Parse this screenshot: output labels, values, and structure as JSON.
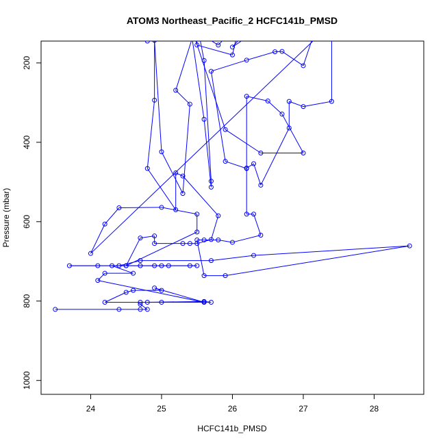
{
  "chart_data": {
    "type": "line",
    "title": "ATOM3 Northeast_Pacific_2 HCFC141b_PMSD",
    "xlabel": "HCFC141b_PMSD",
    "ylabel": "Pressure (mbar)",
    "xlim": [
      23.3,
      28.7
    ],
    "ylim": [
      1035,
      145
    ],
    "y_reversed": true,
    "x_ticks": [
      24,
      25,
      26,
      27,
      28
    ],
    "y_ticks": [
      200,
      400,
      600,
      800,
      1000
    ],
    "series_color": "#0000ff",
    "marker": "open-circle",
    "grid": false,
    "legend": "none",
    "points": [
      [
        23.5,
        821
      ],
      [
        24.4,
        821
      ],
      [
        24.7,
        821
      ],
      [
        24.8,
        821
      ],
      [
        24.7,
        808
      ],
      [
        24.7,
        803
      ],
      [
        25.0,
        803
      ],
      [
        25.6,
        803
      ],
      [
        25.7,
        803
      ],
      [
        25.6,
        801
      ],
      [
        24.8,
        803
      ],
      [
        24.2,
        803
      ],
      [
        24.5,
        778
      ],
      [
        24.6,
        773
      ],
      [
        25.0,
        773
      ],
      [
        24.9,
        767
      ],
      [
        25.6,
        803
      ],
      [
        24.1,
        748
      ],
      [
        24.2,
        730
      ],
      [
        24.6,
        730
      ],
      [
        24.3,
        711
      ],
      [
        24.5,
        711
      ],
      [
        24.7,
        711
      ],
      [
        24.9,
        711
      ],
      [
        25.0,
        711
      ],
      [
        25.1,
        711
      ],
      [
        25.4,
        711
      ],
      [
        25.5,
        711
      ],
      [
        23.7,
        711
      ],
      [
        24.1,
        711
      ],
      [
        24.4,
        711
      ],
      [
        24.7,
        698
      ],
      [
        25.7,
        698
      ],
      [
        26.3,
        685
      ],
      [
        28.5,
        661
      ],
      [
        25.9,
        736
      ],
      [
        25.6,
        736
      ],
      [
        25.5,
        646
      ],
      [
        25.6,
        646
      ],
      [
        25.8,
        646
      ],
      [
        26.0,
        652
      ],
      [
        26.4,
        634
      ],
      [
        26.3,
        581
      ],
      [
        26.2,
        581
      ],
      [
        26.2,
        465
      ],
      [
        26.3,
        454
      ],
      [
        26.4,
        508
      ],
      [
        26.8,
        364
      ],
      [
        26.8,
        297
      ],
      [
        27.0,
        310
      ],
      [
        27.4,
        297
      ],
      [
        27.4,
        100
      ],
      [
        24.0,
        680
      ],
      [
        24.2,
        606
      ],
      [
        24.4,
        565
      ],
      [
        25.0,
        564
      ],
      [
        25.5,
        581
      ],
      [
        25.5,
        626
      ],
      [
        24.5,
        711
      ],
      [
        24.7,
        641
      ],
      [
        24.9,
        636
      ],
      [
        24.9,
        655
      ],
      [
        25.3,
        655
      ],
      [
        25.4,
        655
      ],
      [
        25.5,
        655
      ],
      [
        25.7,
        645
      ],
      [
        25.8,
        585
      ],
      [
        25.3,
        485
      ],
      [
        25.2,
        477
      ],
      [
        25.2,
        570
      ],
      [
        24.8,
        466
      ],
      [
        24.9,
        294
      ],
      [
        24.9,
        143
      ],
      [
        25.0,
        424
      ],
      [
        25.3,
        529
      ],
      [
        25.4,
        304
      ],
      [
        25.2,
        269
      ],
      [
        25.5,
        100
      ],
      [
        25.6,
        194
      ],
      [
        25.7,
        498
      ],
      [
        25.7,
        513
      ],
      [
        25.6,
        342
      ],
      [
        25.4,
        100
      ],
      [
        25.9,
        368
      ],
      [
        26.4,
        427
      ],
      [
        27.0,
        427
      ],
      [
        26.7,
        329
      ],
      [
        26.5,
        296
      ],
      [
        26.2,
        284
      ],
      [
        26.2,
        466
      ],
      [
        25.9,
        448
      ],
      [
        25.7,
        221
      ],
      [
        26.2,
        193
      ],
      [
        26.6,
        172
      ],
      [
        26.7,
        171
      ],
      [
        27.0,
        207
      ],
      [
        27.2,
        100
      ],
      [
        26.1,
        100
      ],
      [
        25.8,
        155
      ],
      [
        25.3,
        100
      ],
      [
        24.8,
        145
      ],
      [
        26.5,
        100
      ],
      [
        26.0,
        160
      ],
      [
        26.3,
        100
      ],
      [
        25.5,
        100
      ],
      [
        25.5,
        155
      ],
      [
        26.0,
        180
      ],
      [
        26.1,
        100
      ]
    ]
  }
}
